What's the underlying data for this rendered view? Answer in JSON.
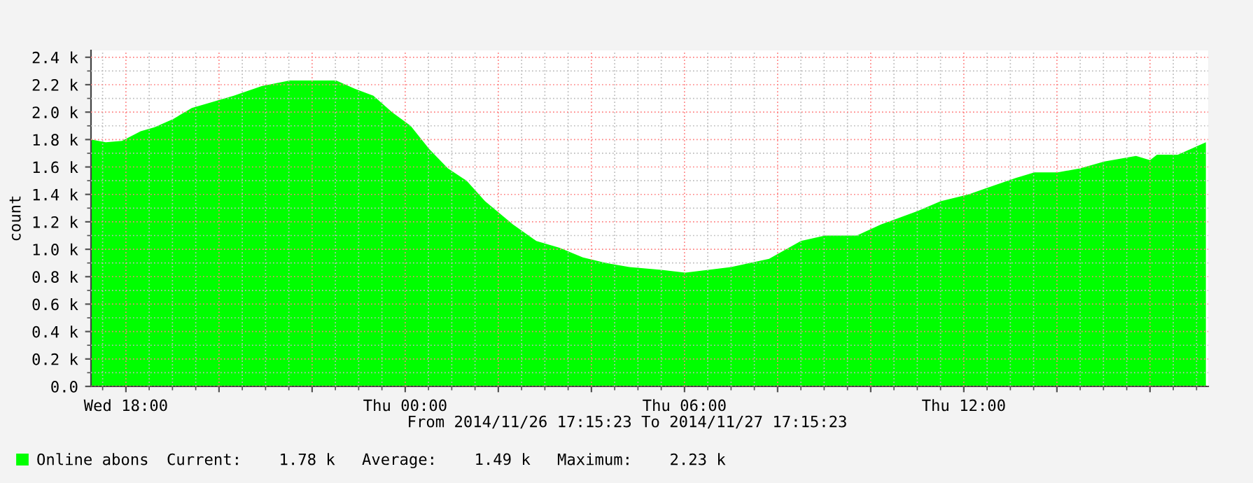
{
  "chart_data": {
    "type": "area",
    "ylabel": "count",
    "annotations": [
      "From 2014/11/26 17:15:23 To 2014/11/27 17:15:23",
      "Current:    1.78 k",
      "Average:    1.49 k",
      "Maximum:    2.23 k"
    ],
    "xlim": [
      "2014-11-26T17:15",
      "2014-11-27T17:15"
    ],
    "xticks": [
      {
        "value": "2014-11-26T18:00",
        "label": "Wed 18:00"
      },
      {
        "value": "2014-11-26T20:00",
        "label": null
      },
      {
        "value": "2014-11-26T22:00",
        "label": null
      },
      {
        "value": "2014-11-27T00:00",
        "label": "Thu 00:00"
      },
      {
        "value": "2014-11-27T02:00",
        "label": null
      },
      {
        "value": "2014-11-27T04:00",
        "label": null
      },
      {
        "value": "2014-11-27T06:00",
        "label": "Thu 06:00"
      },
      {
        "value": "2014-11-27T08:00",
        "label": null
      },
      {
        "value": "2014-11-27T10:00",
        "label": null
      },
      {
        "value": "2014-11-27T12:00",
        "label": "Thu 12:00"
      },
      {
        "value": "2014-11-27T14:00",
        "label": null
      },
      {
        "value": "2014-11-27T16:00",
        "label": null
      }
    ],
    "ylim": [
      0,
      2450
    ],
    "yticks": [
      {
        "value": 0,
        "label": "0.0"
      },
      {
        "value": 200,
        "label": "0.2 k"
      },
      {
        "value": 400,
        "label": "0.4 k"
      },
      {
        "value": 600,
        "label": "0.6 k"
      },
      {
        "value": 800,
        "label": "0.8 k"
      },
      {
        "value": 1000,
        "label": "1.0 k"
      },
      {
        "value": 1200,
        "label": "1.2 k"
      },
      {
        "value": 1400,
        "label": "1.4 k"
      },
      {
        "value": 1600,
        "label": "1.6 k"
      },
      {
        "value": 1800,
        "label": "1.8 k"
      },
      {
        "value": 2000,
        "label": "2.0 k"
      },
      {
        "value": 2200,
        "label": "2.2 k"
      },
      {
        "value": 2400,
        "label": "2.4 k"
      }
    ],
    "grid": true,
    "legend": "bottom left",
    "series": [
      {
        "name": "Online abons",
        "color": "#00ff00",
        "x": [
          "2014-11-26T17:15",
          "2014-11-26T17:34",
          "2014-11-26T17:55",
          "2014-11-26T18:19",
          "2014-11-26T18:37",
          "2014-11-26T19:01",
          "2014-11-26T19:25",
          "2014-11-26T19:49",
          "2014-11-26T20:19",
          "2014-11-26T20:55",
          "2014-11-26T21:31",
          "2014-11-26T22:31",
          "2014-11-26T22:55",
          "2014-11-26T23:19",
          "2014-11-26T23:43",
          "2014-11-27T00:07",
          "2014-11-27T00:31",
          "2014-11-27T00:55",
          "2014-11-27T01:19",
          "2014-11-27T01:43",
          "2014-11-27T02:19",
          "2014-11-27T02:49",
          "2014-11-27T03:19",
          "2014-11-27T03:49",
          "2014-11-27T04:19",
          "2014-11-27T04:49",
          "2014-11-27T05:30",
          "2014-11-27T06:01",
          "2014-11-27T07:00",
          "2014-11-27T07:49",
          "2014-11-27T08:30",
          "2014-11-27T09:01",
          "2014-11-27T09:42",
          "2014-11-27T10:13",
          "2014-11-27T11:01",
          "2014-11-27T11:30",
          "2014-11-27T12:06",
          "2014-11-27T12:31",
          "2014-11-27T13:07",
          "2014-11-27T13:31",
          "2014-11-27T14:01",
          "2014-11-27T14:30",
          "2014-11-27T15:01",
          "2014-11-27T15:42",
          "2014-11-27T16:00",
          "2014-11-27T16:09",
          "2014-11-27T16:36",
          "2014-11-27T17:12"
        ],
        "values": [
          1800,
          1780,
          1790,
          1860,
          1890,
          1950,
          2030,
          2070,
          2120,
          2190,
          2230,
          2230,
          2170,
          2120,
          2000,
          1900,
          1730,
          1590,
          1500,
          1350,
          1180,
          1060,
          1010,
          940,
          900,
          870,
          850,
          830,
          870,
          930,
          1060,
          1100,
          1100,
          1180,
          1280,
          1350,
          1400,
          1450,
          1520,
          1560,
          1560,
          1590,
          1640,
          1680,
          1650,
          1690,
          1690,
          1780
        ]
      }
    ]
  }
}
